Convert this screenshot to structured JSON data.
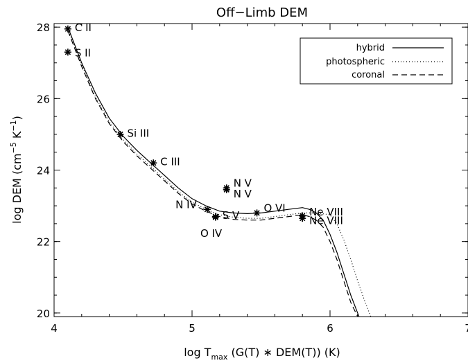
{
  "chart_data": {
    "type": "line",
    "title": "Off−Limb DEM",
    "xlabel": {
      "pre": "log T",
      "sub": "max",
      "post": " (G(T) ∗ DEM(T)) (K)"
    },
    "ylabel": {
      "pre": "log DEM (cm",
      "sup1": "−5",
      "mid": " K",
      "sup2": "−1",
      "post": ")"
    },
    "xlim": [
      4,
      7
    ],
    "ylim": [
      19.9,
      28.1
    ],
    "xticks": [
      4,
      5,
      6,
      7
    ],
    "xtick_labels": [
      "4",
      "5",
      "6",
      "7"
    ],
    "yticks": [
      20,
      22,
      24,
      26,
      28
    ],
    "ytick_labels": [
      "20",
      "22",
      "24",
      "26",
      "28"
    ],
    "grid": false,
    "legend_position": "top-right",
    "series": [
      {
        "name": "hybrid",
        "style": "solid",
        "x": [
          4.1,
          4.2,
          4.3,
          4.4,
          4.5,
          4.6,
          4.7,
          4.8,
          4.9,
          5.0,
          5.1,
          5.2,
          5.3,
          5.4,
          5.5,
          5.6,
          5.7,
          5.8,
          5.85,
          5.9,
          5.95,
          6.0,
          6.05,
          6.1,
          6.15,
          6.2,
          6.22
        ],
        "y": [
          28.0,
          27.0,
          26.15,
          25.45,
          24.95,
          24.55,
          24.2,
          23.85,
          23.5,
          23.2,
          23.0,
          22.85,
          22.8,
          22.78,
          22.8,
          22.85,
          22.9,
          22.95,
          22.9,
          22.8,
          22.6,
          22.2,
          21.7,
          21.1,
          20.5,
          20.0,
          19.8
        ]
      },
      {
        "name": "photospheric",
        "style": "dotted",
        "x": [
          4.1,
          4.2,
          4.3,
          4.4,
          4.5,
          4.6,
          4.7,
          4.8,
          4.9,
          5.0,
          5.1,
          5.2,
          5.3,
          5.4,
          5.5,
          5.6,
          5.7,
          5.8,
          5.9,
          6.0,
          6.05,
          6.1,
          6.15,
          6.2,
          6.25,
          6.3
        ],
        "y": [
          27.95,
          26.95,
          26.05,
          25.35,
          24.85,
          24.45,
          24.1,
          23.75,
          23.4,
          23.1,
          22.9,
          22.75,
          22.68,
          22.65,
          22.65,
          22.7,
          22.75,
          22.8,
          22.8,
          22.75,
          22.5,
          22.05,
          21.5,
          20.9,
          20.35,
          19.85
        ]
      },
      {
        "name": "coronal",
        "style": "dashed",
        "x": [
          4.1,
          4.2,
          4.3,
          4.4,
          4.5,
          4.6,
          4.7,
          4.8,
          4.9,
          5.0,
          5.1,
          5.2,
          5.3,
          5.4,
          5.5,
          5.6,
          5.7,
          5.8,
          5.85,
          5.9,
          5.95,
          6.0,
          6.05,
          6.1,
          6.15,
          6.2,
          6.21
        ],
        "y": [
          27.9,
          26.9,
          26.0,
          25.3,
          24.8,
          24.4,
          24.05,
          23.7,
          23.35,
          23.05,
          22.85,
          22.7,
          22.62,
          22.6,
          22.6,
          22.65,
          22.7,
          22.75,
          22.7,
          22.6,
          22.4,
          22.0,
          21.5,
          20.9,
          20.3,
          19.9,
          19.8
        ]
      }
    ],
    "points": [
      {
        "label": "C II",
        "x": 4.1,
        "y": 27.95,
        "lx": 4.15,
        "ly": 28.0
      },
      {
        "label": "S II",
        "x": 4.1,
        "y": 27.3,
        "lx": 4.15,
        "ly": 27.3
      },
      {
        "label": "Si III",
        "x": 4.48,
        "y": 25.0,
        "lx": 4.53,
        "ly": 25.05
      },
      {
        "label": "C III",
        "x": 4.72,
        "y": 24.2,
        "lx": 4.77,
        "ly": 24.25
      },
      {
        "label": "N IV",
        "x": 5.11,
        "y": 22.9,
        "lx": 4.88,
        "ly": 23.05
      },
      {
        "label": "O IV",
        "x": 5.17,
        "y": 22.7,
        "lx": 5.06,
        "ly": 22.25
      },
      {
        "label": "S V",
        "x": 5.17,
        "y": 22.68,
        "lx": 5.22,
        "ly": 22.75
      },
      {
        "label": "N V",
        "x": 5.25,
        "y": 23.5,
        "lx": 5.3,
        "ly": 23.65
      },
      {
        "label": "N V",
        "x": 5.25,
        "y": 23.45,
        "lx": 5.3,
        "ly": 23.35
      },
      {
        "label": "O VI",
        "x": 5.47,
        "y": 22.8,
        "lx": 5.52,
        "ly": 22.95
      },
      {
        "label": "Ne VIII",
        "x": 5.8,
        "y": 22.72,
        "lx": 5.85,
        "ly": 22.85
      },
      {
        "label": "Ne VIII",
        "x": 5.8,
        "y": 22.65,
        "lx": 5.85,
        "ly": 22.6
      }
    ]
  }
}
